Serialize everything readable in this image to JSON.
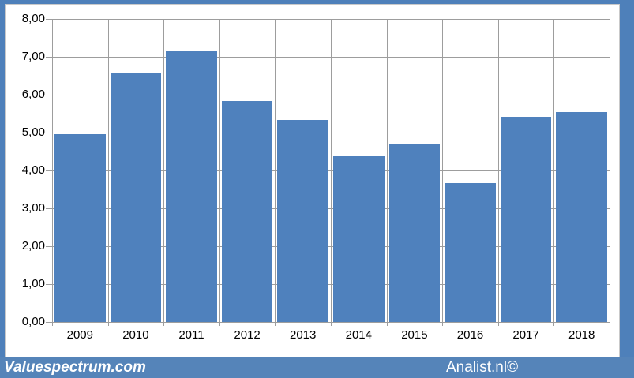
{
  "chart_data": {
    "type": "bar",
    "title": "",
    "xlabel": "",
    "ylabel": "",
    "categories": [
      "2009",
      "2010",
      "2011",
      "2012",
      "2013",
      "2014",
      "2015",
      "2016",
      "2017",
      "2018"
    ],
    "values": [
      4.96,
      6.58,
      7.15,
      5.83,
      5.33,
      4.38,
      4.69,
      3.67,
      5.42,
      5.55
    ],
    "ylim": [
      0,
      8
    ],
    "ytick_step": 1,
    "ytick_labels_top_to_bottom": [
      "8,00",
      "7,00",
      "6,00",
      "5,00",
      "4,00",
      "3,00",
      "2,00",
      "1,00",
      "0,00"
    ],
    "grid": true,
    "legend": "none",
    "decimal_separator": ",",
    "bar_color": "#4f81bd",
    "gridline_color": "#9d9d9d",
    "plot_background": "#ffffff"
  },
  "frame": {
    "border_color": "#4e80ba",
    "canvas_background": "#ffffff",
    "canvas_border_color": "#c9c9c9"
  },
  "footer": {
    "left_text": "Valuespectrum.com",
    "right_text": "Analist.nl©",
    "background": "#5584b9",
    "text_color": "#ffffff"
  }
}
